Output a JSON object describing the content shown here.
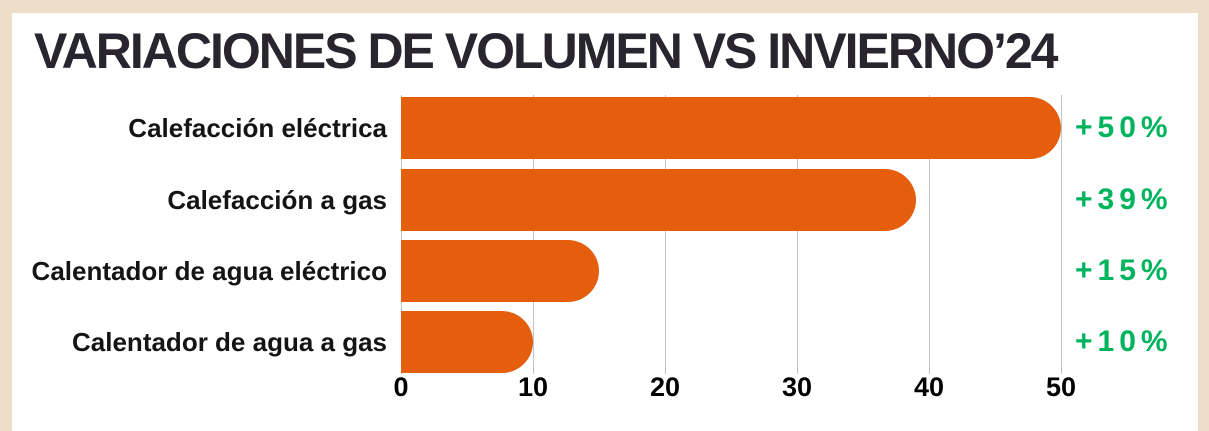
{
  "frame": {
    "background_color": "#eeddc9",
    "card_background_color": "#ffffff",
    "title_color": "#28252e"
  },
  "chart_data": {
    "type": "bar",
    "orientation": "horizontal",
    "title": "VARIACIONES DE VOLUMEN VS INVIERNO’24",
    "categories": [
      "Calefacción eléctrica",
      "Calefacción a gas",
      "Calentador de agua eléctrico",
      "Calentador de agua a gas"
    ],
    "values": [
      50,
      39,
      15,
      10
    ],
    "value_labels": [
      "+50%",
      "+39%",
      "+15%",
      "+10%"
    ],
    "xticks": [
      0,
      10,
      20,
      30,
      40,
      50
    ],
    "xtick_labels": [
      "0",
      "10",
      "20",
      "30",
      "40",
      "50"
    ],
    "xlim": [
      0,
      50
    ],
    "grid": true,
    "legend": false,
    "bar_color": "#e45e0e",
    "label_color": "#141414",
    "value_label_color": "#00b45e",
    "gridline_color": "#c3c3c3",
    "tick_label_color": "#000000"
  }
}
